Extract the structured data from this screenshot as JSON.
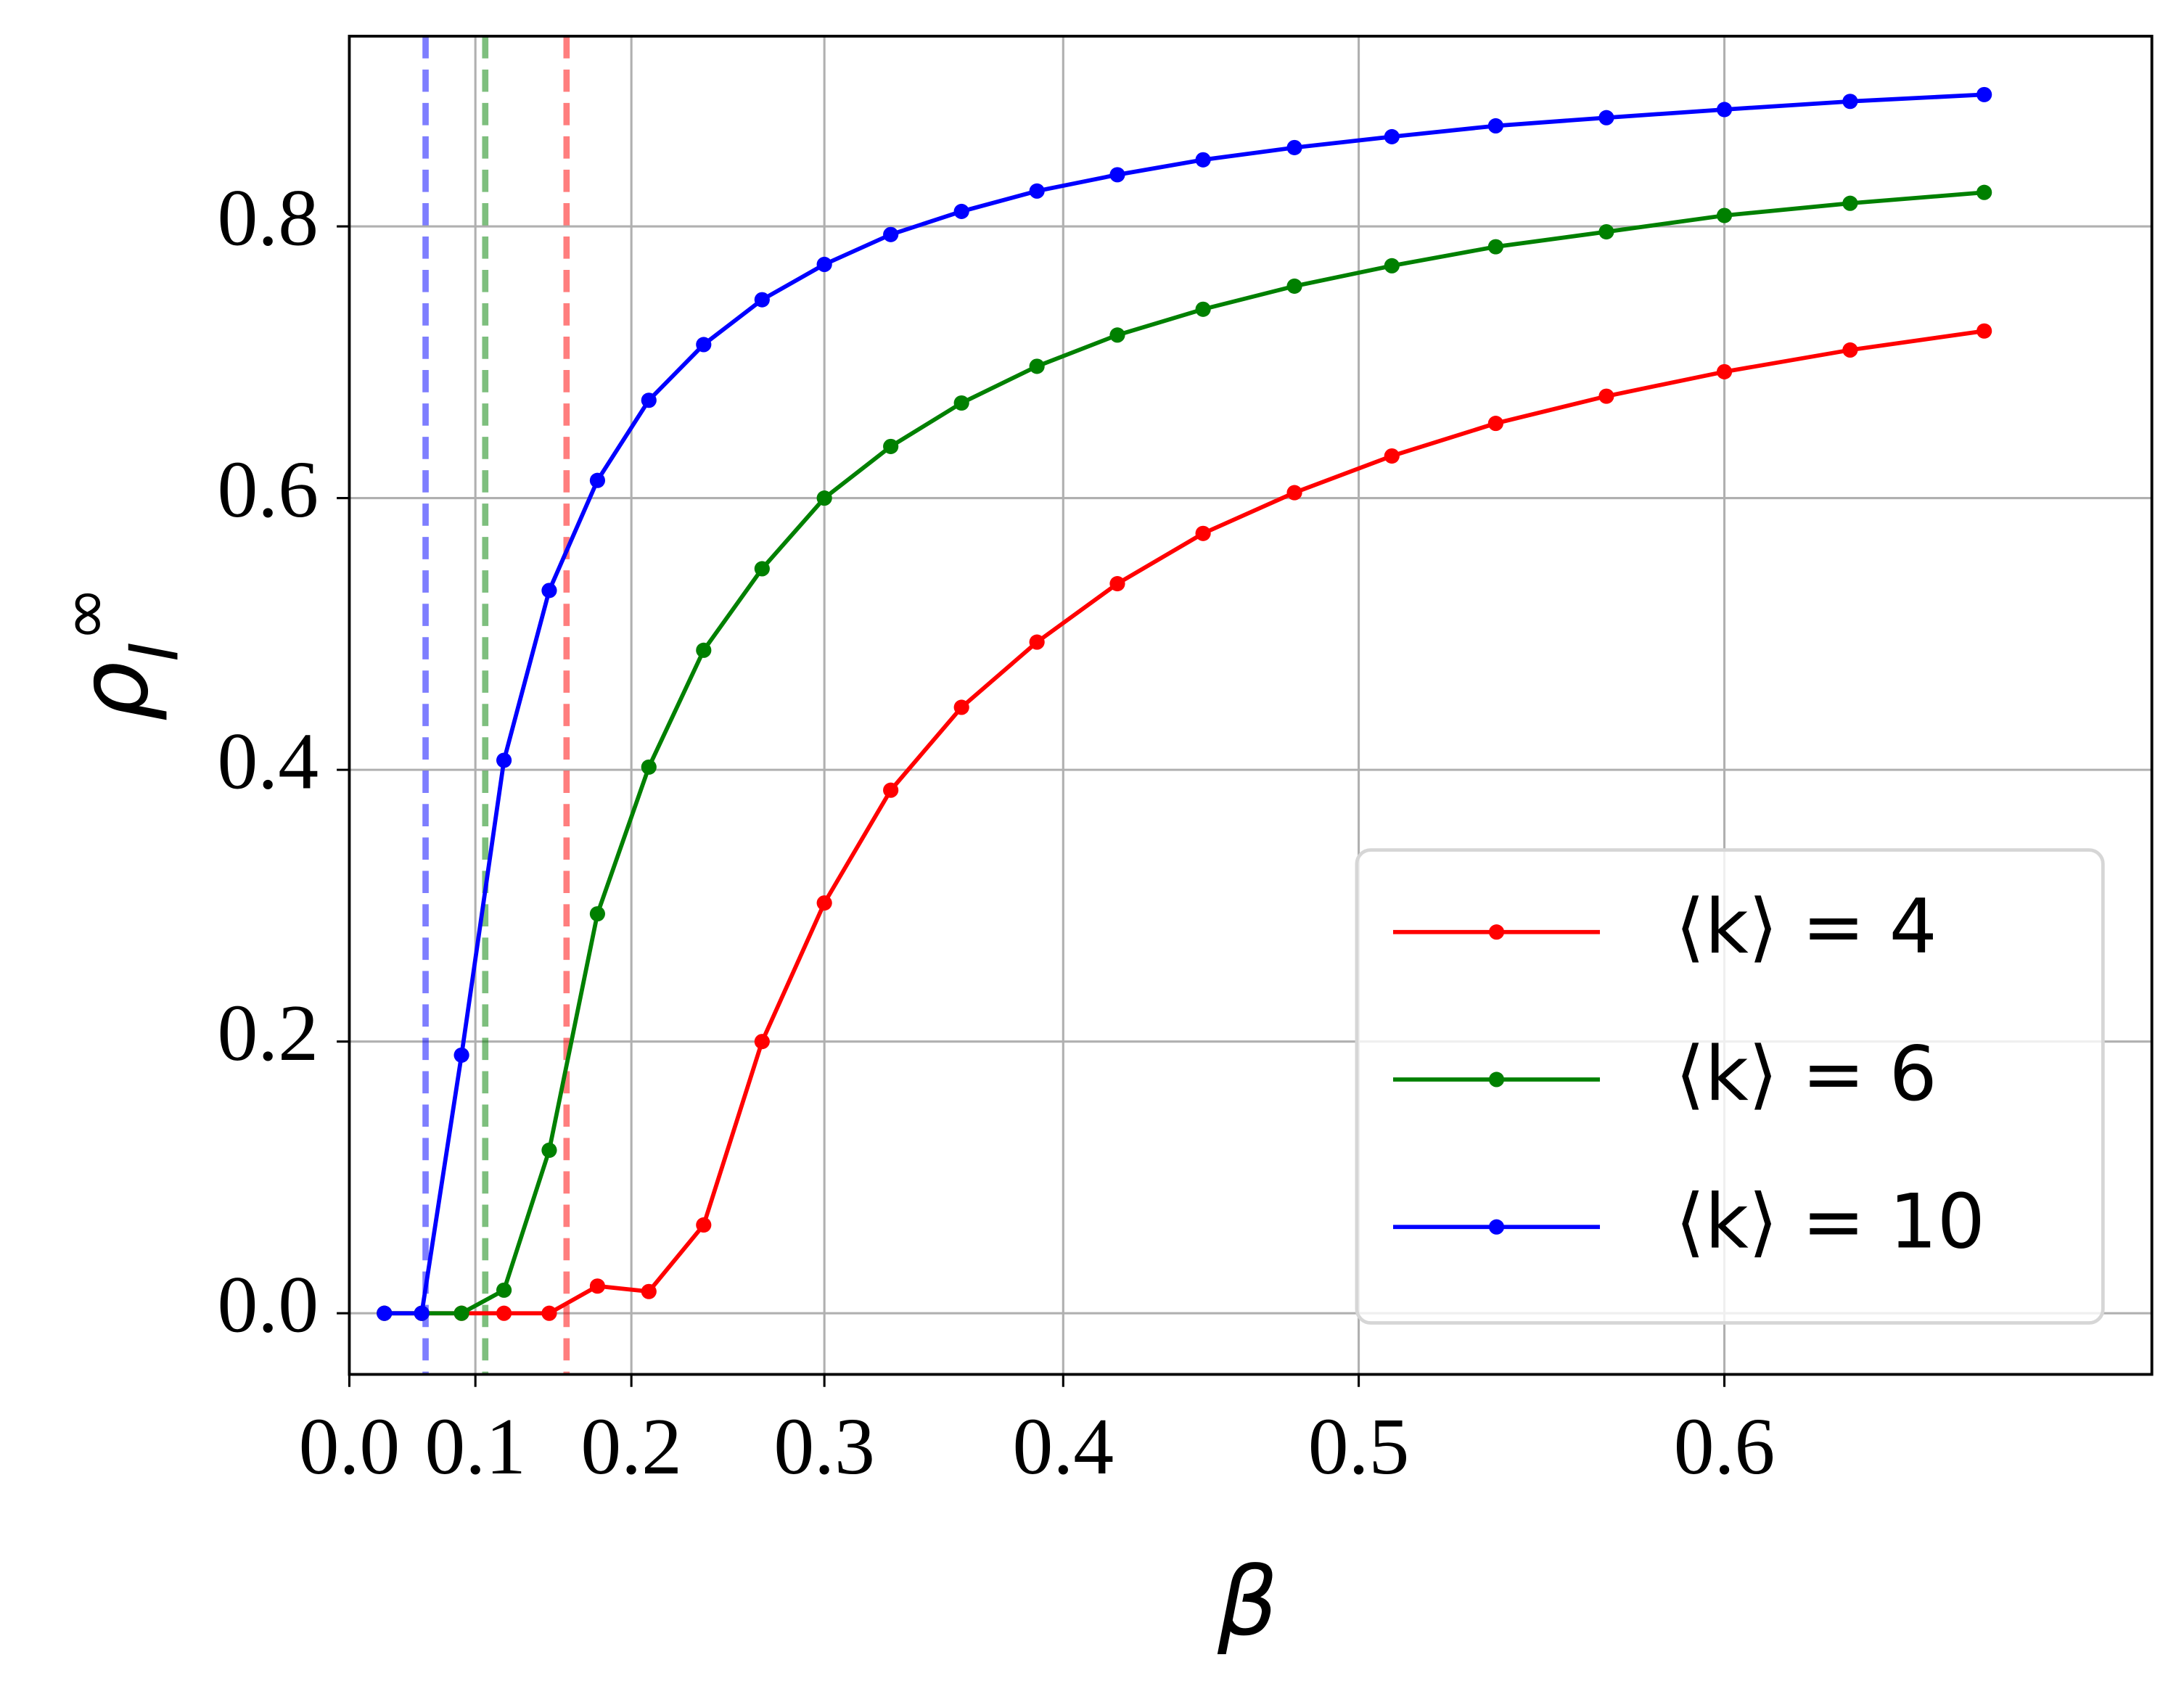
{
  "chart_data": {
    "type": "line",
    "xscale": "exponential",
    "xlabel": "β",
    "ylabel": [
      "ρ",
      "I",
      "∞"
    ],
    "x": [
      0.03,
      0.06,
      0.09,
      0.12,
      0.15,
      0.18,
      0.21,
      0.24,
      0.27,
      0.3,
      0.33,
      0.36,
      0.39,
      0.42,
      0.45,
      0.48,
      0.51,
      0.54,
      0.57,
      0.6,
      0.63,
      0.66
    ],
    "series": [
      {
        "name": "⟨k⟩ = 4",
        "color": "#ff0000",
        "values": [
          0,
          0,
          0,
          0,
          0,
          0.02,
          0.016,
          0.065,
          0.2,
          0.302,
          0.385,
          0.446,
          0.494,
          0.537,
          0.574,
          0.604,
          0.631,
          0.655,
          0.675,
          0.693,
          0.709,
          0.723
        ]
      },
      {
        "name": "⟨k⟩ = 6",
        "color": "#008000",
        "values": [
          0,
          0,
          0,
          0.017,
          0.12,
          0.294,
          0.402,
          0.488,
          0.548,
          0.6,
          0.638,
          0.67,
          0.697,
          0.72,
          0.739,
          0.756,
          0.771,
          0.785,
          0.796,
          0.808,
          0.817,
          0.825
        ]
      },
      {
        "name": "⟨k⟩ = 10",
        "color": "#0000ff",
        "values": [
          0,
          0,
          0.19,
          0.407,
          0.532,
          0.613,
          0.672,
          0.713,
          0.746,
          0.772,
          0.794,
          0.811,
          0.826,
          0.838,
          0.849,
          0.858,
          0.866,
          0.874,
          0.88,
          0.886,
          0.892,
          0.897
        ]
      }
    ],
    "vlines": [
      {
        "x": 0.063,
        "color": "#0000ff"
      },
      {
        "x": 0.107,
        "color": "#008000"
      },
      {
        "x": 0.161,
        "color": "#ff0000"
      }
    ],
    "xlim": [
      0,
      0.695
    ],
    "ylim": [
      -0.045,
      0.94
    ],
    "xticks": [
      {
        "value": 0,
        "label": "0.0"
      },
      0.1,
      0.2,
      0.3,
      0.4,
      0.5,
      0.6
    ],
    "yticks": [
      {
        "value": 0,
        "label": "0.0"
      },
      0.2,
      0.4,
      0.6,
      0.8
    ],
    "grid": true,
    "legend": "lower right"
  }
}
